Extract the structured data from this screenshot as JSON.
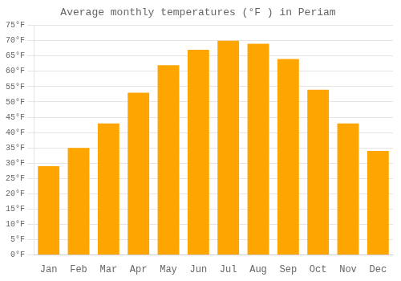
{
  "chart_data": {
    "type": "bar",
    "title": "Average monthly temperatures (°F ) in Periam",
    "categories": [
      "Jan",
      "Feb",
      "Mar",
      "Apr",
      "May",
      "Jun",
      "Jul",
      "Aug",
      "Sep",
      "Oct",
      "Nov",
      "Dec"
    ],
    "values": [
      29,
      35,
      43,
      53,
      62,
      67,
      70,
      69,
      64,
      54,
      43,
      34
    ],
    "color": "#FFA500",
    "ylim": [
      0,
      75
    ],
    "yticks": [
      {
        "value": 0,
        "label": "0°F"
      },
      {
        "value": 5,
        "label": "5°F"
      },
      {
        "value": 10,
        "label": "10°F"
      },
      {
        "value": 15,
        "label": "15°F"
      },
      {
        "value": 20,
        "label": "20°F"
      },
      {
        "value": 25,
        "label": "25°F"
      },
      {
        "value": 30,
        "label": "30°F"
      },
      {
        "value": 35,
        "label": "35°F"
      },
      {
        "value": 40,
        "label": "40°F"
      },
      {
        "value": 45,
        "label": "45°F"
      },
      {
        "value": 50,
        "label": "50°F"
      },
      {
        "value": 55,
        "label": "55°F"
      },
      {
        "value": 60,
        "label": "60°F"
      },
      {
        "value": 65,
        "label": "65°F"
      },
      {
        "value": 70,
        "label": "70°F"
      },
      {
        "value": 75,
        "label": "75°F"
      }
    ],
    "grid": true
  }
}
